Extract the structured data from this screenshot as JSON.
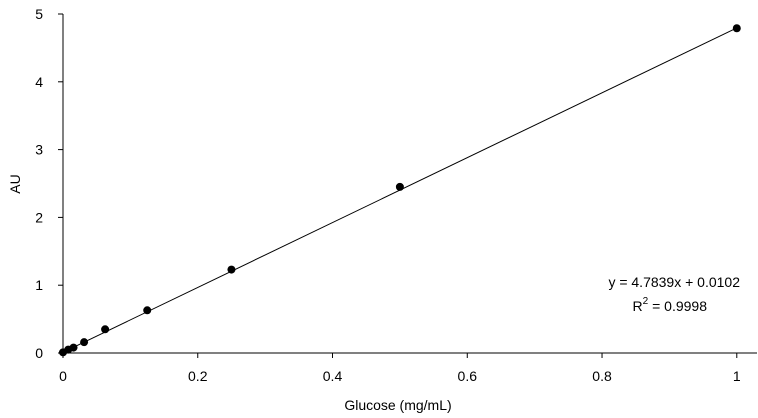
{
  "chart_data": {
    "type": "scatter",
    "title": "",
    "xlabel": "Glucose (mg/mL)",
    "ylabel": "AU",
    "xlim": [
      0,
      1.03
    ],
    "ylim": [
      0,
      5
    ],
    "xticks": [
      0,
      0.2,
      0.4,
      0.6,
      0.8,
      1
    ],
    "xtick_labels": [
      "0",
      "0.2",
      "0.4",
      "0.6",
      "0.8",
      "1"
    ],
    "yticks": [
      0,
      1,
      2,
      3,
      4,
      5
    ],
    "ytick_labels": [
      "0",
      "1",
      "2",
      "3",
      "4",
      "5"
    ],
    "grid": false,
    "series": [
      {
        "x": [
          0,
          0.0078,
          0.0156,
          0.0313,
          0.0625,
          0.125,
          0.25,
          0.5,
          1.0
        ],
        "y": [
          0.01,
          0.05,
          0.08,
          0.16,
          0.35,
          0.63,
          1.23,
          2.45,
          4.79
        ]
      }
    ],
    "trendline": {
      "slope": 4.7839,
      "intercept": 0.0102,
      "x_range": [
        0,
        1.0
      ]
    },
    "annotations": {
      "equation": "y = 4.7839x + 0.0102",
      "r2_prefix": "R",
      "r2_sup": "2",
      "r2_suffix": " = 0.9998"
    },
    "colors": {
      "marker": "#000000",
      "line": "#000000",
      "axis": "#000000"
    }
  }
}
